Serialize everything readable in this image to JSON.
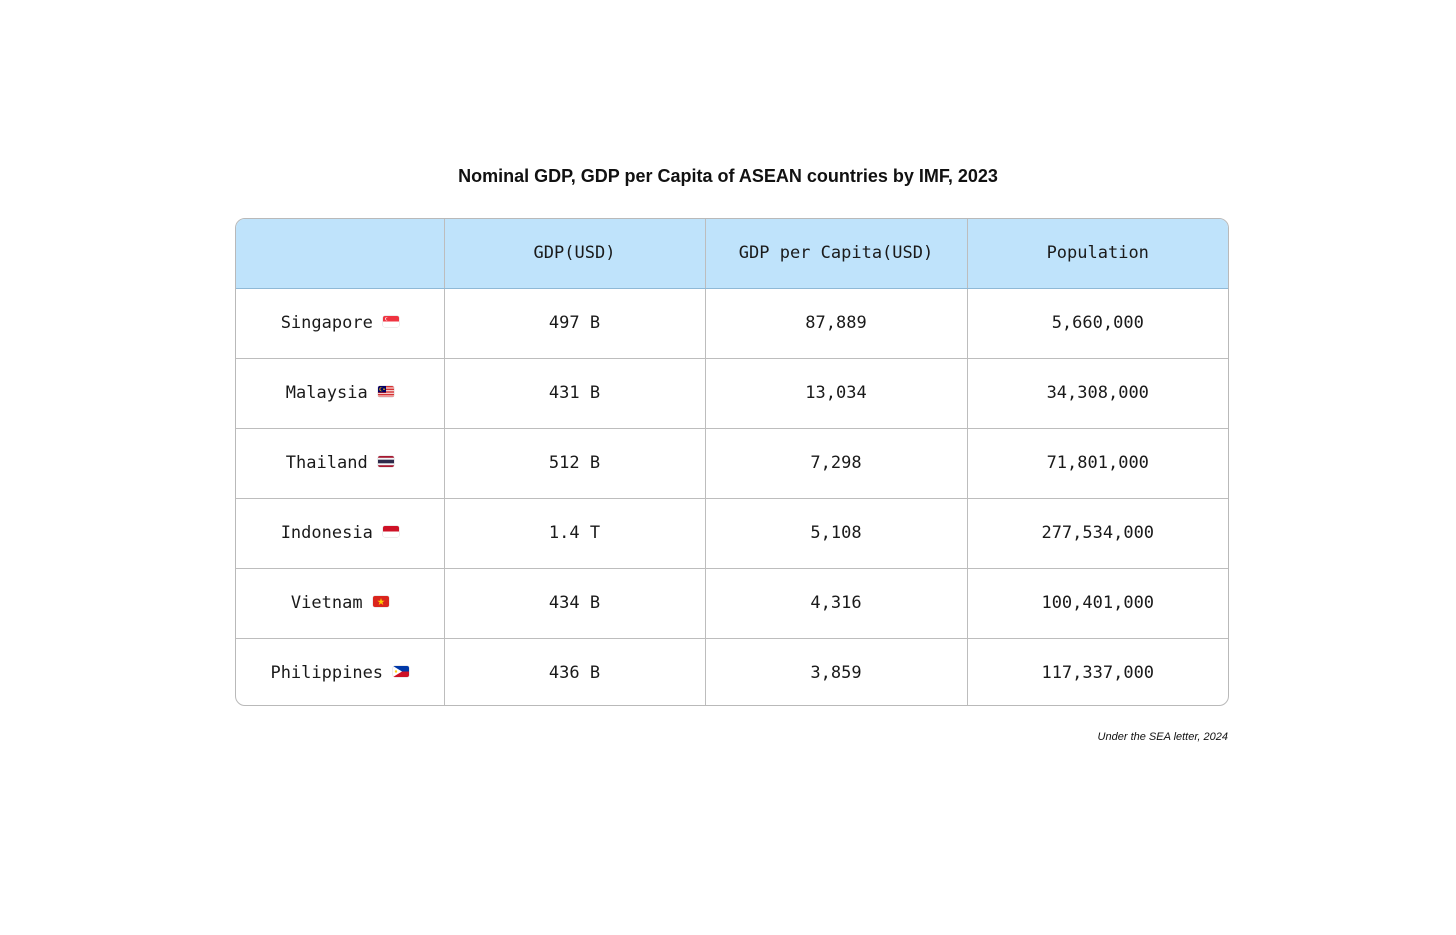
{
  "chart_data": {
    "type": "table",
    "title": "Nominal GDP, GDP per Capita of ASEAN countries by IMF, 2023",
    "columns": [
      "",
      "GDP(USD)",
      "GDP per Capita(USD)",
      "Population"
    ],
    "rows": [
      {
        "country": "Singapore",
        "flag": "singapore-flag-icon",
        "gdp": "497 B",
        "gdp_per_capita": "87,889",
        "population": "5,660,000"
      },
      {
        "country": "Malaysia",
        "flag": "malaysia-flag-icon",
        "gdp": "431 B",
        "gdp_per_capita": "13,034",
        "population": "34,308,000"
      },
      {
        "country": "Thailand",
        "flag": "thailand-flag-icon",
        "gdp": "512 B",
        "gdp_per_capita": "7,298",
        "population": "71,801,000"
      },
      {
        "country": "Indonesia",
        "flag": "indonesia-flag-icon",
        "gdp": "1.4 T",
        "gdp_per_capita": "5,108",
        "population": "277,534,000"
      },
      {
        "country": "Vietnam",
        "flag": "vietnam-flag-icon",
        "gdp": "434 B",
        "gdp_per_capita": "4,316",
        "population": "100,401,000"
      },
      {
        "country": "Philippines",
        "flag": "philippines-flag-icon",
        "gdp": "436 B",
        "gdp_per_capita": "3,859",
        "population": "117,337,000"
      }
    ],
    "header_color": "#bfe3fb",
    "footnote": "Under the SEA letter, 2024"
  }
}
